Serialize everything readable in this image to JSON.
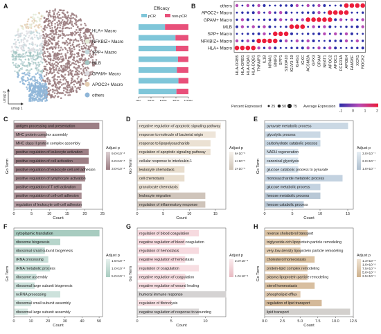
{
  "panel_labels": [
    "A",
    "B",
    "C",
    "D",
    "E",
    "F",
    "G",
    "H"
  ],
  "colors": {
    "HLA+ Macro": "#9a7b7e",
    "NFKBIZ+ Macro": "#e3ead7",
    "SPP+ Macro": "#c4d8dc",
    "MLB": "#a3c6c3",
    "GPAM+ Macro": "#dedde2",
    "APOC2+ Macro": "#e4cdb1",
    "others": "#8fb6d8",
    "pCR": "#7fc6d9",
    "non-pCR": "#e8507a",
    "dot_low": "#2c2fa8",
    "dot_mid": "#b54ab6",
    "dot_high": "#ec1c3a"
  },
  "panel_a": {
    "legend": [
      "HLA+ Macro",
      "NFKBIZ+ Macro",
      "SPP+ Macro",
      "MLB",
      "GPAM+ Macro",
      "APOC2+ Macro",
      "others"
    ],
    "umap_x": "umap 1",
    "umap_y": "umap 2",
    "efficacy_title": "Efficacy",
    "efficacy_legend": [
      "pCR",
      "non-pCR"
    ],
    "efficacy_ticks": [
      "0%",
      "25%",
      "50%",
      "75%",
      "100%"
    ]
  },
  "chart_data": [
    {
      "panel": "A",
      "type": "bar",
      "title": "Efficacy",
      "categories": [
        "HLA+ Macro",
        "NFKBIZ+ Macro",
        "SPP+ Macro",
        "MLB",
        "GPAM+ Macro",
        "APOC2+ Macro",
        "others"
      ],
      "series": [
        {
          "name": "pCR",
          "values": [
            0.53,
            0.74,
            0.75,
            0.79,
            0.77,
            0.8,
            0.76
          ]
        },
        {
          "name": "non-pCR",
          "values": [
            0.47,
            0.26,
            0.25,
            0.21,
            0.23,
            0.2,
            0.24
          ]
        }
      ],
      "xlim": [
        0,
        1
      ]
    },
    {
      "panel": "B",
      "type": "scatter",
      "rows": [
        "others",
        "APOC2+ Macro",
        "GPAM+ Macro",
        "MLB",
        "SPP+ Macro",
        "NFKBIZ+ Macro",
        "HLA+ Macro"
      ],
      "genes": [
        "HLA-DRB5",
        "HLA-DRB1",
        "HLA-DQA1",
        "HLA-DQB1",
        "TNFAIP3",
        "IL1B",
        "NR4A1",
        "BNIP3",
        "SPP1",
        "S100A10",
        "IGLV3-19",
        "IGHG1",
        "IGKC",
        "ACSM2A",
        "GPX3",
        "GRAM",
        "NEAT1",
        "APOC2",
        "APOC1",
        "FCER1A",
        "APOE4",
        "FAM26F",
        "XCR1",
        "ROCK2"
      ],
      "legend_size_title": "Percent Expressed",
      "legend_size_values": [
        25,
        50,
        75
      ],
      "legend_color_title": "Average Expression",
      "legend_color_ticks": [
        -1,
        0,
        1,
        2
      ]
    },
    {
      "panel": "C",
      "type": "bar",
      "xlabel": "Count",
      "ylabel": "Go Term",
      "xticks": [
        0,
        5,
        10,
        15,
        20,
        25
      ],
      "xlim": [
        0,
        25
      ],
      "categories": [
        "antigen processing and presentation",
        "MHC protein complex assembly",
        "MHC class II protein complex assembly",
        "positive regulation of leukocyte activation",
        "positive regulation of cell activation",
        "positive regulation of leukocyte cell-cell adhesion",
        "positive regulation of lymphocyte activation",
        "positive regulation of T cell activation",
        "positive regulation of cell-cell adhesion",
        "regulation of leukocyte cell-cell adhesion"
      ],
      "values": [
        24,
        9,
        9,
        21,
        21,
        20,
        20,
        19,
        19,
        19
      ],
      "legend_title": "Adjust p",
      "legend_ticks": [
        "9.0×10⁻⁸",
        "6.0×10⁻⁸",
        "3.0×10⁻⁸"
      ]
    },
    {
      "panel": "D",
      "type": "bar",
      "xlabel": "Count",
      "ylabel": "Go Term",
      "xticks": [
        0,
        5,
        10,
        15
      ],
      "xlim": [
        0,
        17
      ],
      "categories": [
        "negative regulation of apoptotic signaling pathway",
        "response to molecule of bacterial origin",
        "response to lipopolysaccharide",
        "regulation of apoptotic signaling pathway",
        "cellular response to interleukin-1",
        "leukocyte chemotaxis",
        "cell chemotaxis",
        "granulocyte chemotaxis",
        "leukocyte migration",
        "regulation of inflammatory response"
      ],
      "values": [
        16,
        15,
        14,
        14,
        10,
        9,
        9,
        8,
        13,
        13
      ],
      "legend_title": "Adjust p",
      "legend_ticks": [
        "6×10⁻⁵",
        "4×10⁻⁵",
        "2×10⁻⁵"
      ]
    },
    {
      "panel": "E",
      "type": "bar",
      "xlabel": "Count",
      "ylabel": "Go Term",
      "xticks": [
        0,
        5,
        10,
        15
      ],
      "xlim": [
        0,
        16
      ],
      "categories": [
        "pyruvate metabolic process",
        "glycolytic process",
        "carbohydrate catabolic process",
        "NADH regeneration",
        "canonical glycolysis",
        "glucose catabolic process to pyruvate",
        "monosaccharide metabolic process",
        "glucose metabolic process",
        "hexose metabolic process",
        "hexose catabolic process"
      ],
      "values": [
        15,
        10,
        10,
        6,
        6,
        6,
        14,
        10,
        10,
        7
      ],
      "legend_title": "Adjust p",
      "legend_ticks": [
        "3.0×10⁻⁷",
        "2.0×10⁻⁷",
        "1.0×10⁻⁷"
      ]
    },
    {
      "panel": "F",
      "type": "bar",
      "xlabel": "Count",
      "ylabel": "Go Term",
      "xticks": [
        0,
        10,
        20,
        30,
        40,
        50
      ],
      "xlim": [
        0,
        52
      ],
      "categories": [
        "cytoplasmic translation",
        "ribosome biogenesis",
        "ribosomal small subunit biogenesis",
        "rRNA processing",
        "rRNA metabolic process",
        "ribosome assembly",
        "ribosomal large subunit biogenesis",
        "ncRNA processing",
        "ribosomal small subunit assembly",
        "ribosomal large subunit assembly"
      ],
      "values": [
        50,
        27,
        18,
        20,
        21,
        13,
        12,
        27,
        10,
        8
      ],
      "legend_title": "Adjust p",
      "legend_ticks": [
        "1.5×10⁻⁸",
        "1.0×10⁻⁸",
        "5.0×10⁻⁹"
      ]
    },
    {
      "panel": "G",
      "type": "bar",
      "xlabel": "Count",
      "ylabel": "Go Term",
      "xticks": [
        0,
        5,
        10
      ],
      "xlim": [
        0,
        13
      ],
      "categories": [
        "regulation of blood coagulation",
        "negative regulation of blood coagulation",
        "regulation of hemostasis",
        "negative regulation of hemostasis",
        "regulation of coagulation",
        "negative regulation of coagulation",
        "negative regulation of wound healing",
        "humoral immune response",
        "regulation of fibrinolysis",
        "negative regulation of response to wounding"
      ],
      "values": [
        9,
        7,
        9,
        7,
        9,
        7,
        7,
        13,
        5,
        9
      ],
      "legend_title": "Adjust p",
      "legend_ticks": [
        "2.0×10⁻⁴",
        "1.0×10⁻⁴"
      ]
    },
    {
      "panel": "H",
      "type": "bar",
      "xlabel": "Count",
      "ylabel": "Go Term",
      "xticks": [
        "0.0",
        "2.5",
        "5.0",
        "7.5",
        "10.0",
        "12.5"
      ],
      "xlim": [
        0,
        12.5
      ],
      "categories": [
        "reverse cholesterol transport",
        "triglyceride-rich lipoprotein particle remodeling",
        "very-low-density lipoprotein particle remodeling",
        "cholesterol homeostasis",
        "protein-lipid complex remodeling",
        "plasma lipoprotein particle remodeling",
        "sterol homeostasis",
        "phospholipid efflux",
        "regulation of lipid transport",
        "lipid transport"
      ],
      "values": [
        6,
        5,
        5,
        7,
        6,
        6,
        7,
        5,
        8,
        12
      ],
      "legend_title": "Adjust p",
      "legend_ticks": [
        "1.3×10⁻⁸",
        "1.0×10⁻⁸",
        "7.5×10⁻⁹",
        "5.0×10⁻⁹",
        "2.5×10⁻⁹"
      ]
    }
  ]
}
